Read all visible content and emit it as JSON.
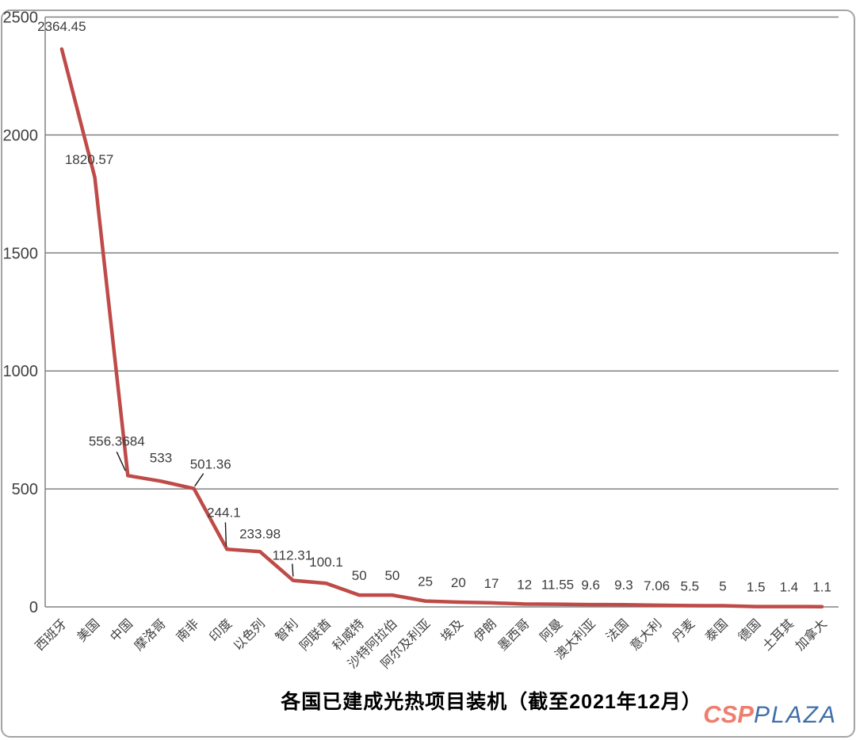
{
  "chart_data": {
    "type": "line",
    "title": "各国已建成光热项目装机（截至2021年12月）",
    "categories": [
      "西班牙",
      "美国",
      "中国",
      "摩洛哥",
      "南非",
      "印度",
      "以色列",
      "智利",
      "阿联酋",
      "科威特",
      "沙特阿拉伯",
      "阿尔及利亚",
      "埃及",
      "伊朗",
      "墨西哥",
      "阿曼",
      "澳大利亚",
      "法国",
      "意大利",
      "丹麦",
      "泰国",
      "德国",
      "土耳其",
      "加拿大"
    ],
    "values": [
      2364.45,
      1820.57,
      556.3684,
      533,
      501.36,
      244.1,
      233.98,
      112.31,
      100.1,
      50,
      50,
      25,
      20,
      17,
      12,
      11.55,
      9.6,
      9.3,
      7.06,
      5.5,
      5,
      1.5,
      1.4,
      1.1
    ],
    "point_labels": [
      "2364.45",
      "1820.57",
      "556.3684",
      "533",
      "501.36",
      "244.1",
      "233.98",
      "112.31",
      "100.1",
      "50",
      "50",
      "25",
      "20",
      "17",
      "12",
      "11.55",
      "9.6",
      "9.3",
      "7.06",
      "5.5",
      "5",
      "1.5",
      "1.4",
      "1.1"
    ],
    "xlabel": "",
    "ylabel": "",
    "ylim": [
      0,
      2500
    ],
    "yticks": [
      0,
      500,
      1000,
      1500,
      2000,
      2500
    ],
    "grid": true,
    "legend_position": "none",
    "line_color": "#be4b48",
    "grid_color": "#828282",
    "label_color": "#3c3c3c"
  },
  "branding": {
    "logo_part1": "CSP",
    "logo_part2": "PLAZA",
    "logo_color1": "#ee7e6d",
    "logo_color2": "#3f6fa8"
  }
}
